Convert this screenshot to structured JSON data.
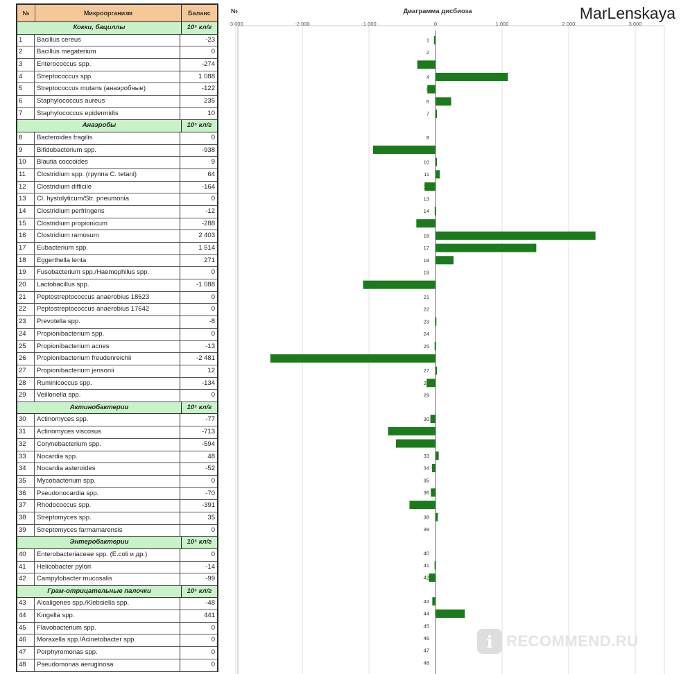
{
  "table": {
    "headers": {
      "num": "№",
      "name": "Микроорганизм",
      "value": "Баланс"
    },
    "sections": [
      {
        "title": "Кокки, бациллы",
        "unit": "10⁵ кл/г",
        "rows": [
          [
            "1",
            "Bacillus cereus",
            "-23"
          ],
          [
            "2",
            "Bacillus megaterium",
            "0"
          ],
          [
            "3",
            "Enterococcus spp.",
            "-274"
          ],
          [
            "4",
            "Streptococcus spp.",
            "1 088"
          ],
          [
            "5",
            "Streptococcus mutans (анаэробные)",
            "-122"
          ],
          [
            "6",
            "Staphylococcus aureus",
            "235"
          ],
          [
            "7",
            "Staphylococcus epidermidis",
            "10"
          ]
        ]
      },
      {
        "title": "Анаэробы",
        "unit": "10⁵ кл/г",
        "rows": [
          [
            "8",
            "Bacteroides fragilis",
            "0"
          ],
          [
            "9",
            "Bifidobacterium spp.",
            "-938"
          ],
          [
            "10",
            "Blautia coccoides",
            "9"
          ],
          [
            "11",
            "Clostridium spp. (группа C. tetani)",
            "64"
          ],
          [
            "12",
            "Clostridium difficile",
            "-164"
          ],
          [
            "13",
            "Cl. hystolyticum/Str. pneumonia",
            "0"
          ],
          [
            "14",
            "Clostridium perfringens",
            "-12"
          ],
          [
            "15",
            "Clostridium propionicum",
            "-288"
          ],
          [
            "16",
            "Clostridium ramosum",
            "2 403"
          ],
          [
            "17",
            "Eubacterium spp.",
            "1 514"
          ],
          [
            "18",
            "Eggerthella lenta",
            "271"
          ],
          [
            "19",
            "Fusobacterium spp./Haemophilus spp.",
            "0"
          ],
          [
            "20",
            "Lactobacillus spp.",
            "-1 088"
          ],
          [
            "21",
            "Peptostreptococcus anaerobius 18623",
            "0"
          ],
          [
            "22",
            "Peptostreptococcus anaerobius 17642",
            "0"
          ],
          [
            "23",
            "Prevotella spp.",
            "-8"
          ],
          [
            "24",
            "Propionibacterium spp.",
            "0"
          ],
          [
            "25",
            "Propionibacterium acnes",
            "-13"
          ],
          [
            "26",
            "Propionibacterium freudenreichii",
            "-2 481"
          ],
          [
            "27",
            "Propionibacterium jensonii",
            "12"
          ],
          [
            "28",
            "Ruminicoccus spp.",
            "-134"
          ],
          [
            "29",
            "Veillonella spp.",
            "0"
          ]
        ]
      },
      {
        "title": "Актинобактерии",
        "unit": "10⁵ кл/г",
        "rows": [
          [
            "30",
            "Actinomyces spp.",
            "-77"
          ],
          [
            "31",
            "Actinomyces viscosus",
            "-713"
          ],
          [
            "32",
            "Corynebacterium spp.",
            "-594"
          ],
          [
            "33",
            "Nocardia spp.",
            "48"
          ],
          [
            "34",
            "Nocardia asteroides",
            "-52"
          ],
          [
            "35",
            "Mycobacterium spp.",
            "0"
          ],
          [
            "36",
            "Pseudonocardia spp.",
            "-70"
          ],
          [
            "37",
            "Rhodococcus spp.",
            "-391"
          ],
          [
            "38",
            "Streptomyces spp.",
            "35"
          ],
          [
            "39",
            "Streptomyces farmamarensis",
            "0"
          ]
        ]
      },
      {
        "title": "Энтеробактерии",
        "unit": "10⁵ кл/г",
        "rows": [
          [
            "40",
            "Enterobacteriaceae spp. (E.coli и др.)",
            "0"
          ],
          [
            "41",
            "Helicobacter pylori",
            "-14"
          ],
          [
            "42",
            "Campylobacter mucosalis",
            "-99"
          ]
        ]
      },
      {
        "title": "Грам-отрицательные палочки",
        "unit": "10⁵ кл/г",
        "rows": [
          [
            "43",
            "Alcaligenes spp./Klebsiella spp.",
            "-48"
          ],
          [
            "44",
            "Kingella spp.",
            "441"
          ],
          [
            "45",
            "Flavobacterium spp.",
            "0"
          ],
          [
            "46",
            "Moraxella spp./Acinetobacter spp.",
            "0"
          ],
          [
            "47",
            "Porphyromonas spp.",
            "0"
          ],
          [
            "48",
            "Pseudomonas aeruginosa",
            "0"
          ]
        ]
      }
    ]
  },
  "chart_data": {
    "type": "bar",
    "orientation": "horizontal",
    "title": "Диаграмма дисбиоза",
    "corner_label": "№",
    "xlim": [
      -3000,
      3000
    ],
    "xticks": [
      "-3 000",
      "-2 000",
      "-1 000",
      "0",
      "1 000",
      "2 000",
      "3 000"
    ],
    "bar_color": "#1b7a1b",
    "grid": true,
    "categories": [
      "1",
      "2",
      "3",
      "4",
      "5",
      "6",
      "7",
      "8",
      "9",
      "10",
      "11",
      "12",
      "13",
      "14",
      "15",
      "16",
      "17",
      "18",
      "19",
      "20",
      "21",
      "22",
      "23",
      "24",
      "25",
      "26",
      "27",
      "28",
      "29",
      "30",
      "31",
      "32",
      "33",
      "34",
      "35",
      "36",
      "37",
      "38",
      "39",
      "40",
      "41",
      "42",
      "43",
      "44",
      "45",
      "46",
      "47",
      "48"
    ],
    "values": [
      -23,
      0,
      -274,
      1088,
      -122,
      235,
      10,
      0,
      -938,
      9,
      64,
      -164,
      0,
      -12,
      -288,
      2403,
      1514,
      271,
      0,
      -1088,
      0,
      0,
      -8,
      0,
      -13,
      -2481,
      12,
      -134,
      0,
      -77,
      -713,
      -594,
      48,
      -52,
      0,
      -70,
      -391,
      35,
      0,
      0,
      -14,
      -99,
      -48,
      441,
      0,
      0,
      0,
      0
    ]
  },
  "watermark": {
    "author": "MarLenskaya",
    "site": "RECOMMEND.RU",
    "logo_letter": "i"
  }
}
